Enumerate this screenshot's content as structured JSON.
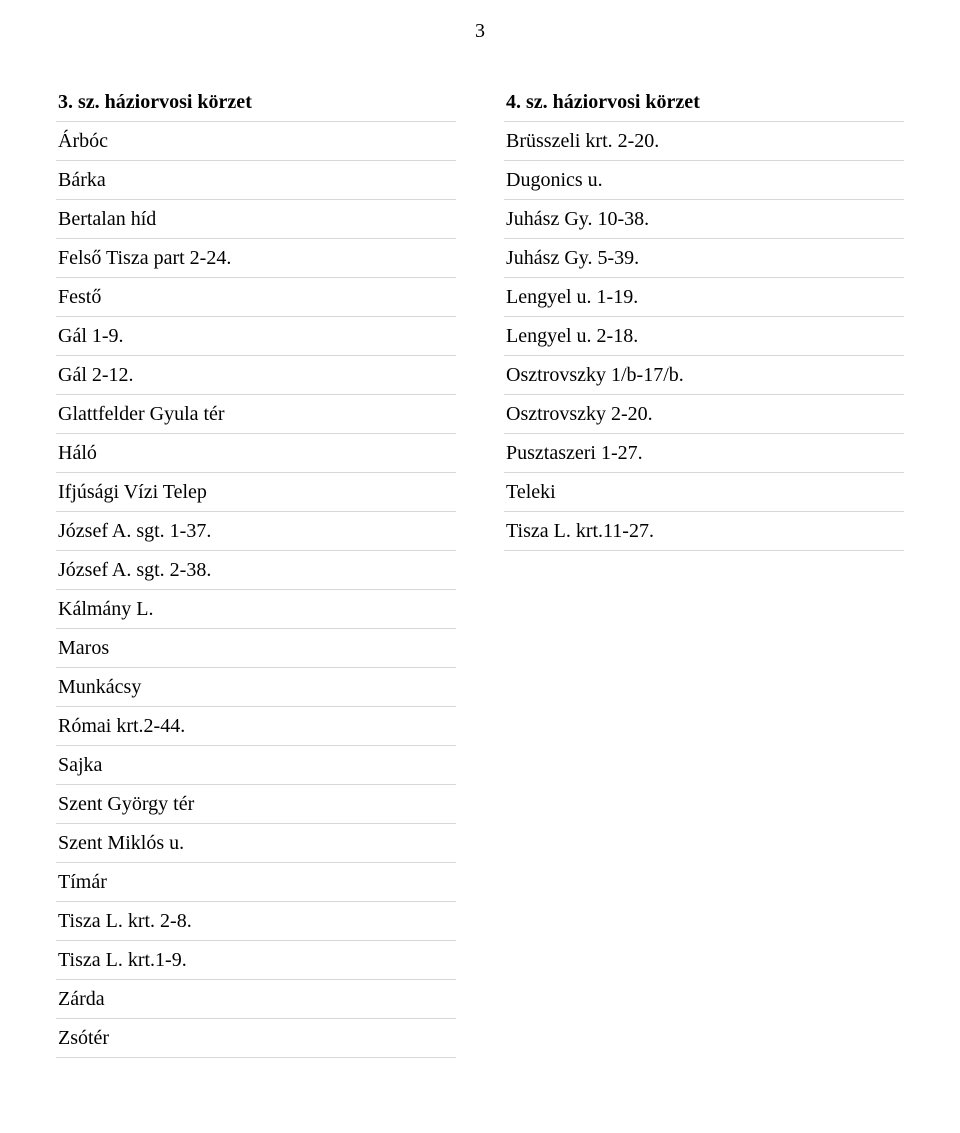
{
  "page_number": "3",
  "left": {
    "heading": "3. sz. háziorvosi körzet",
    "rows": [
      "Árbóc",
      "Bárka",
      "Bertalan híd",
      "Felső Tisza part 2-24.",
      "Festő",
      "Gál 1-9.",
      "Gál 2-12.",
      "Glattfelder Gyula tér",
      "Háló",
      "Ifjúsági Vízi Telep",
      "József A. sgt. 1-37.",
      "József A. sgt. 2-38.",
      "Kálmány L.",
      "Maros",
      "Munkácsy",
      "Római krt.2-44.",
      "Sajka",
      "Szent György tér",
      "Szent Miklós u.",
      "Tímár",
      "Tisza L. krt. 2-8.",
      "Tisza L. krt.1-9.",
      "Zárda",
      "Zsótér"
    ]
  },
  "right": {
    "heading": "4. sz. háziorvosi körzet",
    "rows": [
      "Brüsszeli krt. 2-20.",
      "Dugonics u.",
      "Juhász Gy. 10-38.",
      "Juhász Gy. 5-39.",
      "Lengyel u. 1-19.",
      "Lengyel u. 2-18.",
      "Osztrovszky 1/b-17/b.",
      "Osztrovszky 2-20.",
      "Pusztaszeri 1-27.",
      "Teleki",
      "Tisza L. krt.11-27."
    ]
  }
}
